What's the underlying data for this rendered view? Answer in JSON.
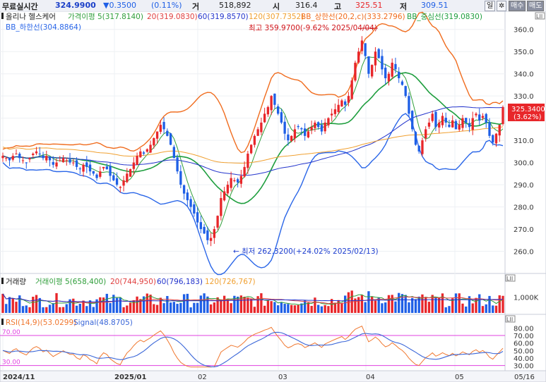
{
  "topbar": {
    "label": "무료실시간",
    "price": "324.9900",
    "change": "▼0.3500",
    "change_pct": "(0.11%)",
    "vol_label": "거",
    "vol_value": "518,892",
    "open_label": "시",
    "open_value": "316.4",
    "high_label": "고",
    "high_value": "325.51",
    "low_label": "저",
    "low_value": "309.51",
    "period_btn": "일",
    "settings_icon": "gear-icon",
    "buy_btn": "매수",
    "sell_btn": "매도"
  },
  "legend": {
    "price": {
      "name": "올리나 헬스케어",
      "ma5": "가격이평 5(317.8140)",
      "ma20": "20(319.0830)",
      "ma60": "60(319.8570)",
      "ma120": "120(307.7352)",
      "bb_upper": "BB_상한선(20,2,c)(333.2796)",
      "bb_mid": "BB_중심선(319.0830)",
      "bb_lower": "BB_하한선(304.8864)"
    },
    "volume": {
      "name": "거래량",
      "ma5": "거래이평 5(658,400)",
      "ma20": "20(744,950)",
      "ma60": "60(796,183)",
      "ma120": "120(726,767)"
    },
    "rsi": {
      "name": "RSI(14,9)(53.0299)",
      "signal": "Signal(48.8705)"
    }
  },
  "annotations": {
    "high": "최고 359.9700(-9.62% 2025/04/04)",
    "low": "최저 262.3200(+24.02% 2025/02/13)"
  },
  "current_price_tag": "325.3400",
  "current_pct_tag": "(3.62%)",
  "panel_tags": [
    "LII",
    "LII",
    "LII"
  ],
  "colors": {
    "up": "#e8262a",
    "down": "#1e5fe6",
    "ma5": "#2f9e3a",
    "ma20": "#e04040",
    "ma60": "#2233cc",
    "ma120": "#f0a030",
    "bb_upper": "#f06c1e",
    "bb_mid": "#1e9e3e",
    "bb_lower": "#2a66e8",
    "rsi": "#f07830",
    "signal": "#3a66d8",
    "rsi_band": "#e040e0"
  },
  "chart_data": [
    {
      "type": "candlestick",
      "title": "올리나 헬스케어",
      "x_range": [
        "2024-11",
        "2025-05-16"
      ],
      "ylim": [
        250,
        365
      ],
      "yticks": [
        260,
        270,
        280,
        290,
        300,
        310,
        320,
        330,
        340,
        350,
        360
      ],
      "xticks": [
        "2024/11",
        "2025/01",
        "02",
        "03",
        "04",
        "05",
        "05/16"
      ],
      "closes": [
        303,
        302,
        301,
        303,
        304,
        302,
        301,
        300,
        302,
        304,
        305,
        304,
        302,
        303,
        301,
        299,
        300,
        301,
        302,
        301,
        300,
        300,
        298,
        297,
        299,
        298,
        296,
        295,
        293,
        296,
        298,
        297,
        294,
        292,
        290,
        289,
        292,
        295,
        297,
        300,
        303,
        305,
        304,
        306,
        308,
        311,
        314,
        317,
        315,
        312,
        308,
        302,
        296,
        290,
        286,
        283,
        280,
        277,
        273,
        270,
        268,
        265,
        266,
        270,
        276,
        284,
        287,
        290,
        293,
        292,
        291,
        294,
        298,
        304,
        308,
        312,
        315,
        318,
        322,
        325,
        330,
        326,
        322,
        318,
        313,
        310,
        312,
        315,
        316,
        315,
        312,
        314,
        316,
        318,
        316,
        314,
        318,
        320,
        322,
        324,
        326,
        328,
        326,
        330,
        337,
        345,
        350,
        355,
        348,
        340,
        344,
        350,
        347,
        342,
        338,
        340,
        345,
        342,
        338,
        335,
        330,
        322,
        315,
        308,
        305,
        310,
        315,
        318,
        322,
        316,
        318,
        321,
        318,
        316,
        319,
        315,
        317,
        320,
        318,
        316,
        320,
        322,
        319,
        321,
        318,
        312,
        309,
        313,
        317,
        325
      ],
      "high": 359.97,
      "low": 262.32,
      "last": 325.34,
      "last_pct": 3.62,
      "ma5_last": 317.814,
      "ma20_last": 319.083,
      "ma60_last": 319.857,
      "ma120_last": 307.7352,
      "bb_upper_last": 333.2796,
      "bb_mid_last": 319.083,
      "bb_lower_last": 304.8864
    },
    {
      "type": "bar",
      "title": "거래량",
      "ytick_label": "1,000K",
      "ytick_value": 1000000,
      "ylim": [
        0,
        1600000
      ],
      "ma5_last": 658400,
      "ma20_last": 744950,
      "ma60_last": 796183,
      "ma120_last": 726767
    },
    {
      "type": "line",
      "title": "RSI(14,9)",
      "ylim": [
        25,
        85
      ],
      "yticks": [
        30,
        40,
        50,
        60,
        70,
        80
      ],
      "band_top": 70,
      "band_bottom": 30,
      "band_top_label": "70.00",
      "band_bottom_label": "30.00",
      "rsi_last": 53.0299,
      "signal_last": 48.8705
    }
  ]
}
